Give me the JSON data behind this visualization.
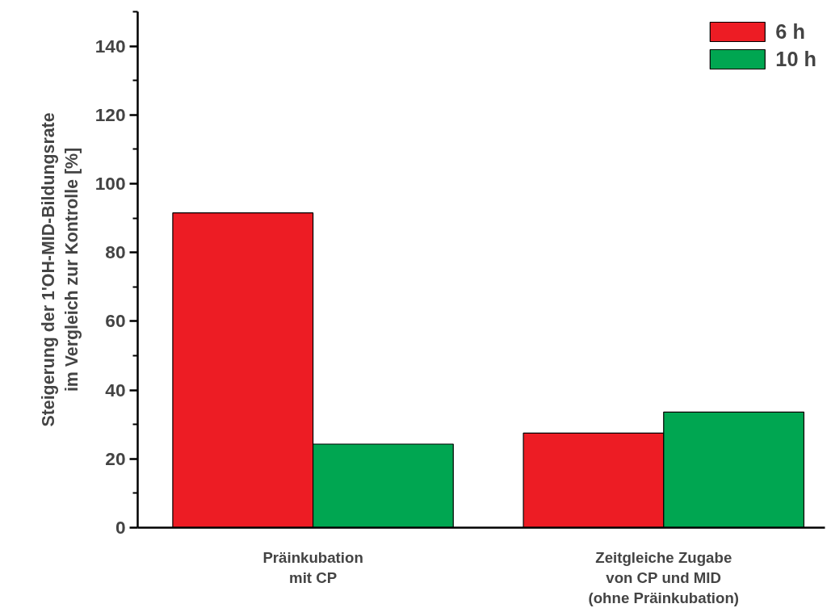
{
  "chart_data": {
    "type": "bar",
    "ylabel": "Steigerung der 1'OH-MID-Bildungsrate\nim Vergleich zur Kontrolle [%]",
    "categories": [
      "Präinkubation\nmit CP",
      "Zeitgleiche Zugabe\nvon CP und MID\n(ohne Präinkubation)"
    ],
    "series": [
      {
        "name": "6 h",
        "color": "#ed1c24",
        "values": [
          91.5,
          27.5
        ]
      },
      {
        "name": "10 h",
        "color": "#00a651",
        "values": [
          24.3,
          33.6
        ]
      }
    ],
    "ylim": [
      0,
      150
    ],
    "yticks": [
      0,
      20,
      40,
      60,
      80,
      100,
      120,
      140
    ],
    "grid": false,
    "legend": "top right"
  }
}
